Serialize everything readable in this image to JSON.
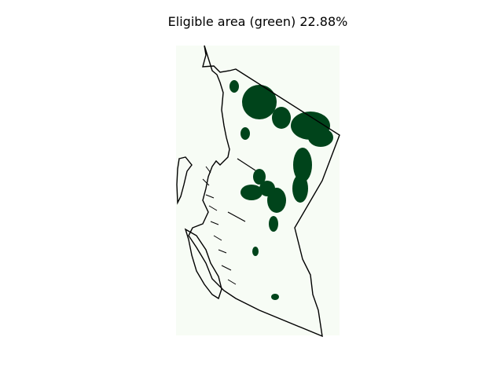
{
  "map": {
    "title": "Eligible area (green) 22.88%",
    "eligible_fraction_percent": 22.88,
    "colors": {
      "background": "#f7fcf5",
      "eligible": "#00441b",
      "outline": "#000000"
    },
    "legend": "none",
    "axes": "off"
  }
}
